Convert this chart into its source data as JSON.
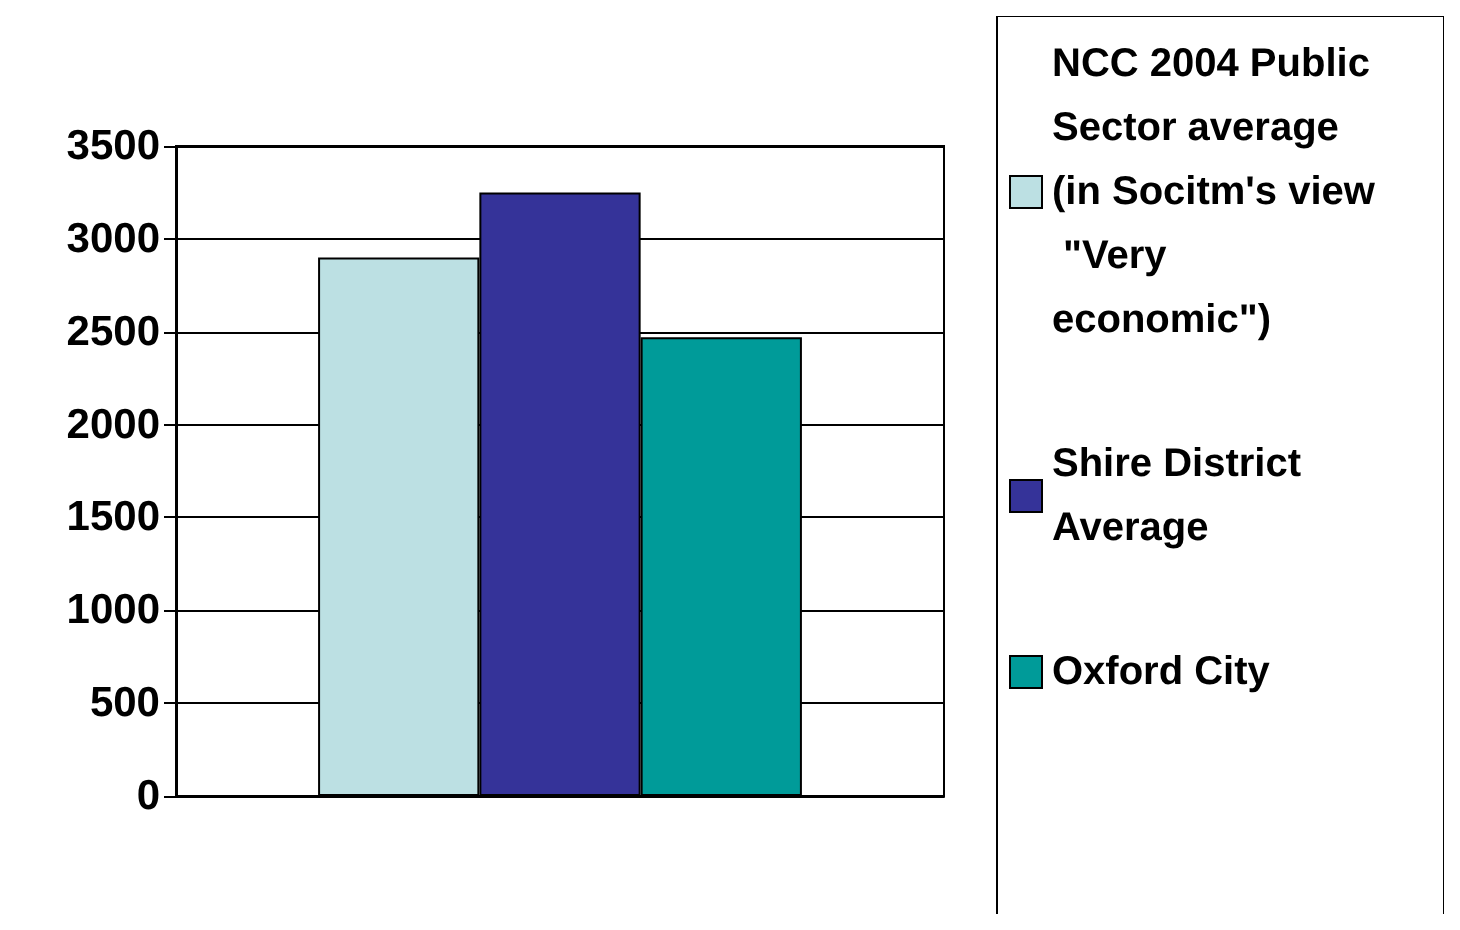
{
  "chart_data": {
    "type": "bar",
    "categories": [
      null
    ],
    "series": [
      {
        "name": "NCC 2004 Public Sector average (in Socitm's view \"Very economic\")",
        "color": "#bce0e3",
        "values": [
          2900
        ]
      },
      {
        "name": "Shire District Average",
        "color": "#353399",
        "values": [
          3250
        ]
      },
      {
        "name": "Oxford City",
        "color": "#009b99",
        "values": [
          2470
        ]
      }
    ],
    "ylim": [
      0,
      3500
    ],
    "yticks": [
      0,
      500,
      1000,
      1500,
      2000,
      2500,
      3000,
      3500
    ],
    "grid": "y",
    "legend": "right"
  }
}
